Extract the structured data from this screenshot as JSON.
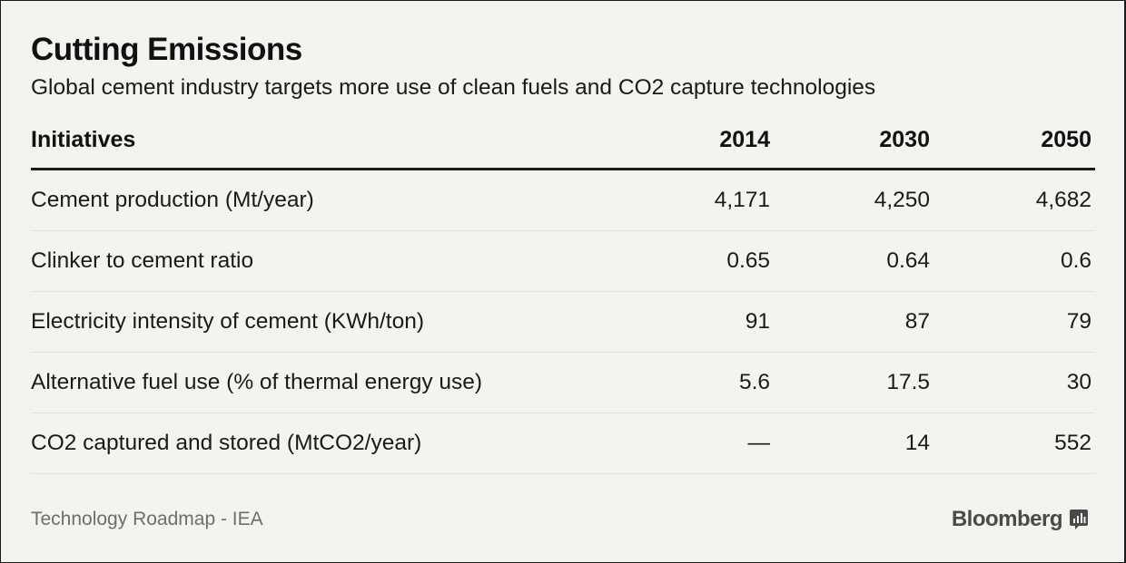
{
  "header": {
    "title": "Cutting Emissions",
    "subtitle": "Global cement industry targets more use of clean fuels and CO2 capture technologies"
  },
  "chart_data": {
    "type": "table",
    "columns": [
      "Initiatives",
      "2014",
      "2030",
      "2050"
    ],
    "rows": [
      {
        "label": "Cement production (Mt/year)",
        "values": [
          "4,171",
          "4,250",
          "4,682"
        ]
      },
      {
        "label": "Clinker to cement ratio",
        "values": [
          "0.65",
          "0.64",
          "0.6"
        ]
      },
      {
        "label": "Electricity intensity of cement (KWh/ton)",
        "values": [
          "91",
          "87",
          "79"
        ]
      },
      {
        "label": "Alternative fuel use (% of thermal energy use)",
        "values": [
          "5.6",
          "17.5",
          "30"
        ]
      },
      {
        "label": "CO2 captured and stored (MtCO2/year)",
        "values": [
          "—",
          "14",
          "552"
        ]
      }
    ]
  },
  "footer": {
    "source": "Technology Roadmap - IEA",
    "brand": "Bloomberg",
    "brand_icon": "bloomberg-chart-icon",
    "brand_color": "#4a4a4a"
  }
}
